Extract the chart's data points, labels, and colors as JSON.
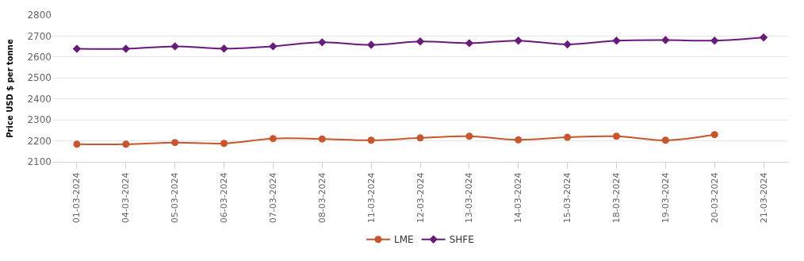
{
  "chart_data": {
    "type": "line",
    "ylabel": "Price USD $ per tonne",
    "categories": [
      "01-03-2024",
      "04-03-2024",
      "05-03-2024",
      "06-03-2024",
      "07-03-2024",
      "08-03-2024",
      "11-03-2024",
      "12-03-2024",
      "13-03-2024",
      "14-03-2024",
      "15-03-2024",
      "18-03-2024",
      "19-03-2024",
      "20-03-2024",
      "21-03-2024"
    ],
    "series": [
      {
        "name": "LME",
        "color": "#c8552b",
        "marker": "circle",
        "values": [
          2184,
          2184,
          2192,
          2188,
          2211,
          2209,
          2203,
          2214,
          2222,
          2205,
          2217,
          2222,
          2203,
          2230,
          null
        ]
      },
      {
        "name": "SHFE",
        "color": "#6a1a7a",
        "marker": "diamond",
        "values": [
          2639,
          2639,
          2651,
          2640,
          2651,
          2670,
          2658,
          2674,
          2666,
          2678,
          2660,
          2678,
          2681,
          2678,
          2693
        ]
      }
    ],
    "ylim": [
      2100,
      2800
    ],
    "yticks": [
      2100,
      2200,
      2300,
      2400,
      2500,
      2600,
      2700,
      2800
    ],
    "grid": "y",
    "legend": "bottom",
    "line_style": "solid"
  }
}
